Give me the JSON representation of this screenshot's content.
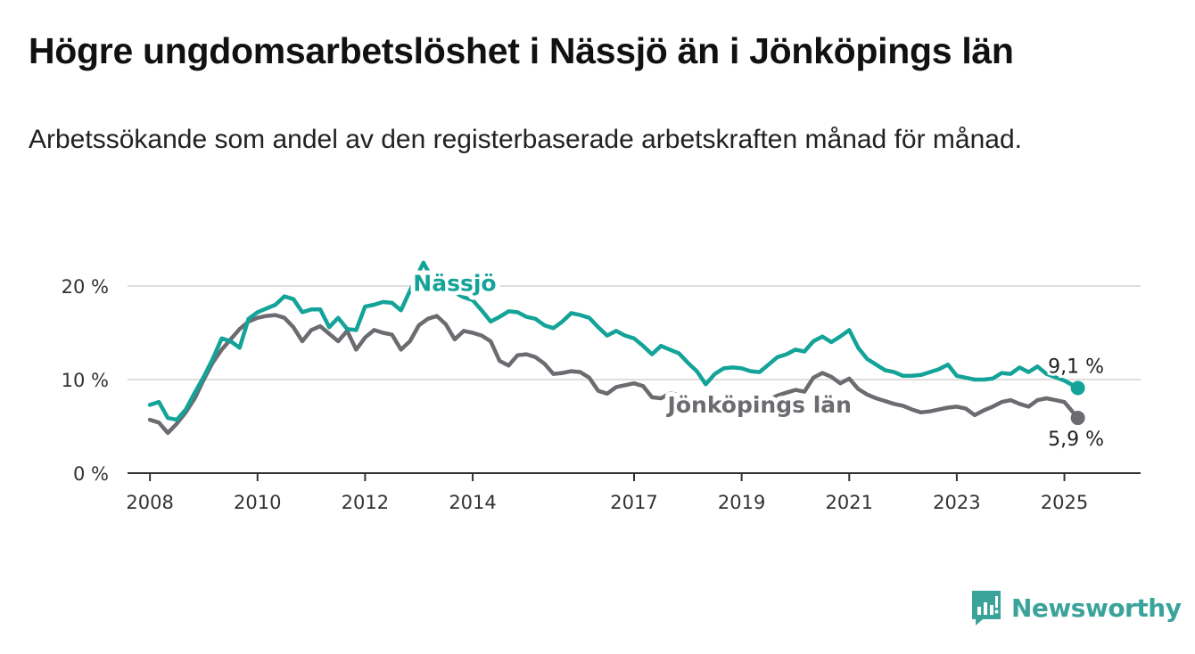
{
  "chart_data": {
    "type": "line",
    "title": "Högre ungdomsarbetslöshet i Nässjö än i Jönköpings län",
    "subtitle": "Arbetssökande som andel av den registerbaserade arbetskraften månad för månad.",
    "ylim": [
      0,
      22
    ],
    "yticks": [
      0,
      10,
      20
    ],
    "ytick_labels": [
      "0 %",
      "10 %",
      "20 %"
    ],
    "xlim": [
      "2007-08",
      "2026-06"
    ],
    "xticks": [
      {
        "x": "2008-01",
        "label": "2008"
      },
      {
        "x": "2010-01",
        "label": "2010"
      },
      {
        "x": "2012-01",
        "label": "2012"
      },
      {
        "x": "2014-01",
        "label": "2014"
      },
      {
        "x": "2017-01",
        "label": "2017"
      },
      {
        "x": "2019-01",
        "label": "2019"
      },
      {
        "x": "2021-01",
        "label": "2021"
      },
      {
        "x": "2023-01",
        "label": "2023"
      },
      {
        "x": "2025-01",
        "label": "2025"
      }
    ],
    "grid": true,
    "legend": "inline labels",
    "series": [
      {
        "name": "Nässjö",
        "color": "#13a398",
        "end_label": "9,1 %",
        "points": [
          [
            "2008-01",
            7.3
          ],
          [
            "2008-03",
            7.6
          ],
          [
            "2008-05",
            5.9
          ],
          [
            "2008-07",
            5.7
          ],
          [
            "2008-09",
            6.8
          ],
          [
            "2008-11",
            8.6
          ],
          [
            "2009-01",
            10.3
          ],
          [
            "2009-03",
            12.2
          ],
          [
            "2009-05",
            14.4
          ],
          [
            "2009-07",
            14.1
          ],
          [
            "2009-09",
            13.4
          ],
          [
            "2009-11",
            16.5
          ],
          [
            "2010-01",
            17.2
          ],
          [
            "2010-03",
            17.6
          ],
          [
            "2010-05",
            18.0
          ],
          [
            "2010-07",
            18.9
          ],
          [
            "2010-09",
            18.6
          ],
          [
            "2010-11",
            17.2
          ],
          [
            "2011-01",
            17.5
          ],
          [
            "2011-03",
            17.5
          ],
          [
            "2011-05",
            15.6
          ],
          [
            "2011-07",
            16.6
          ],
          [
            "2011-09",
            15.4
          ],
          [
            "2011-11",
            15.3
          ],
          [
            "2012-01",
            17.8
          ],
          [
            "2012-03",
            18.0
          ],
          [
            "2012-05",
            18.3
          ],
          [
            "2012-07",
            18.2
          ],
          [
            "2012-09",
            17.4
          ],
          [
            "2012-11",
            19.5
          ],
          [
            "2013-01",
            21.5
          ],
          [
            "2013-02",
            22.5
          ],
          [
            "2013-03",
            21.6
          ],
          [
            "2013-05",
            20.3
          ],
          [
            "2013-07",
            19.6
          ],
          [
            "2013-09",
            19.3
          ],
          [
            "2013-11",
            18.8
          ],
          [
            "2014-01",
            18.5
          ],
          [
            "2014-03",
            17.4
          ],
          [
            "2014-05",
            16.2
          ],
          [
            "2014-07",
            16.7
          ],
          [
            "2014-09",
            17.3
          ],
          [
            "2014-11",
            17.2
          ],
          [
            "2015-01",
            16.7
          ],
          [
            "2015-03",
            16.5
          ],
          [
            "2015-05",
            15.8
          ],
          [
            "2015-07",
            15.5
          ],
          [
            "2015-09",
            16.2
          ],
          [
            "2015-11",
            17.1
          ],
          [
            "2016-01",
            16.9
          ],
          [
            "2016-03",
            16.6
          ],
          [
            "2016-05",
            15.6
          ],
          [
            "2016-07",
            14.7
          ],
          [
            "2016-09",
            15.2
          ],
          [
            "2016-11",
            14.7
          ],
          [
            "2017-01",
            14.4
          ],
          [
            "2017-03",
            13.6
          ],
          [
            "2017-05",
            12.7
          ],
          [
            "2017-07",
            13.6
          ],
          [
            "2017-09",
            13.2
          ],
          [
            "2017-11",
            12.8
          ],
          [
            "2018-01",
            11.8
          ],
          [
            "2018-03",
            10.9
          ],
          [
            "2018-05",
            9.5
          ],
          [
            "2018-07",
            10.6
          ],
          [
            "2018-09",
            11.2
          ],
          [
            "2018-11",
            11.3
          ],
          [
            "2019-01",
            11.2
          ],
          [
            "2019-03",
            10.9
          ],
          [
            "2019-05",
            10.8
          ],
          [
            "2019-07",
            11.6
          ],
          [
            "2019-09",
            12.4
          ],
          [
            "2019-11",
            12.7
          ],
          [
            "2020-01",
            13.2
          ],
          [
            "2020-03",
            13.0
          ],
          [
            "2020-05",
            14.1
          ],
          [
            "2020-07",
            14.6
          ],
          [
            "2020-09",
            14.0
          ],
          [
            "2020-11",
            14.6
          ],
          [
            "2021-01",
            15.3
          ],
          [
            "2021-03",
            13.4
          ],
          [
            "2021-05",
            12.2
          ],
          [
            "2021-07",
            11.6
          ],
          [
            "2021-09",
            11.0
          ],
          [
            "2021-11",
            10.8
          ],
          [
            "2022-01",
            10.4
          ],
          [
            "2022-03",
            10.4
          ],
          [
            "2022-05",
            10.5
          ],
          [
            "2022-07",
            10.8
          ],
          [
            "2022-09",
            11.1
          ],
          [
            "2022-11",
            11.6
          ],
          [
            "2023-01",
            10.4
          ],
          [
            "2023-03",
            10.2
          ],
          [
            "2023-05",
            10.0
          ],
          [
            "2023-07",
            10.0
          ],
          [
            "2023-09",
            10.1
          ],
          [
            "2023-11",
            10.7
          ],
          [
            "2024-01",
            10.6
          ],
          [
            "2024-03",
            11.3
          ],
          [
            "2024-05",
            10.8
          ],
          [
            "2024-07",
            11.4
          ],
          [
            "2024-09",
            10.6
          ],
          [
            "2025-01",
            9.9
          ],
          [
            "2025-04",
            9.1
          ]
        ]
      },
      {
        "name": "Jönköpings län",
        "color": "#6b6b70",
        "end_label": "5,9 %",
        "points": [
          [
            "2008-01",
            5.7
          ],
          [
            "2008-03",
            5.4
          ],
          [
            "2008-05",
            4.3
          ],
          [
            "2008-07",
            5.3
          ],
          [
            "2008-09",
            6.5
          ],
          [
            "2008-11",
            8.0
          ],
          [
            "2009-01",
            10.0
          ],
          [
            "2009-03",
            11.8
          ],
          [
            "2009-05",
            13.2
          ],
          [
            "2009-07",
            14.3
          ],
          [
            "2009-09",
            15.4
          ],
          [
            "2009-11",
            16.2
          ],
          [
            "2010-01",
            16.6
          ],
          [
            "2010-03",
            16.8
          ],
          [
            "2010-05",
            16.9
          ],
          [
            "2010-07",
            16.6
          ],
          [
            "2010-09",
            15.6
          ],
          [
            "2010-11",
            14.1
          ],
          [
            "2011-01",
            15.3
          ],
          [
            "2011-03",
            15.7
          ],
          [
            "2011-05",
            14.9
          ],
          [
            "2011-07",
            14.1
          ],
          [
            "2011-09",
            15.2
          ],
          [
            "2011-11",
            13.2
          ],
          [
            "2012-01",
            14.5
          ],
          [
            "2012-03",
            15.3
          ],
          [
            "2012-05",
            15.0
          ],
          [
            "2012-07",
            14.8
          ],
          [
            "2012-09",
            13.2
          ],
          [
            "2012-11",
            14.1
          ],
          [
            "2013-01",
            15.8
          ],
          [
            "2013-03",
            16.5
          ],
          [
            "2013-05",
            16.8
          ],
          [
            "2013-07",
            15.9
          ],
          [
            "2013-09",
            14.3
          ],
          [
            "2013-11",
            15.2
          ],
          [
            "2014-01",
            15.0
          ],
          [
            "2014-03",
            14.7
          ],
          [
            "2014-05",
            14.1
          ],
          [
            "2014-07",
            12.0
          ],
          [
            "2014-09",
            11.5
          ],
          [
            "2014-11",
            12.6
          ],
          [
            "2015-01",
            12.7
          ],
          [
            "2015-03",
            12.4
          ],
          [
            "2015-05",
            11.7
          ],
          [
            "2015-07",
            10.6
          ],
          [
            "2015-09",
            10.7
          ],
          [
            "2015-11",
            10.9
          ],
          [
            "2016-01",
            10.8
          ],
          [
            "2016-03",
            10.2
          ],
          [
            "2016-05",
            8.8
          ],
          [
            "2016-07",
            8.5
          ],
          [
            "2016-09",
            9.2
          ],
          [
            "2016-11",
            9.4
          ],
          [
            "2017-01",
            9.6
          ],
          [
            "2017-03",
            9.3
          ],
          [
            "2017-05",
            8.1
          ],
          [
            "2017-07",
            8.0
          ],
          [
            "2017-09",
            8.5
          ],
          [
            "2017-11",
            8.4
          ],
          [
            "2018-01",
            7.9
          ],
          [
            "2018-03",
            7.2
          ],
          [
            "2018-05",
            6.8
          ],
          [
            "2018-07",
            7.2
          ],
          [
            "2018-09",
            7.3
          ],
          [
            "2018-11",
            7.6
          ],
          [
            "2019-01",
            7.8
          ],
          [
            "2019-03",
            7.6
          ],
          [
            "2019-05",
            7.3
          ],
          [
            "2019-07",
            7.8
          ],
          [
            "2019-09",
            8.3
          ],
          [
            "2019-11",
            8.6
          ],
          [
            "2020-01",
            8.9
          ],
          [
            "2020-03",
            8.7
          ],
          [
            "2020-05",
            10.2
          ],
          [
            "2020-07",
            10.7
          ],
          [
            "2020-09",
            10.3
          ],
          [
            "2020-11",
            9.6
          ],
          [
            "2021-01",
            10.1
          ],
          [
            "2021-03",
            9.0
          ],
          [
            "2021-05",
            8.4
          ],
          [
            "2021-07",
            8.0
          ],
          [
            "2021-09",
            7.7
          ],
          [
            "2021-11",
            7.4
          ],
          [
            "2022-01",
            7.2
          ],
          [
            "2022-03",
            6.8
          ],
          [
            "2022-05",
            6.5
          ],
          [
            "2022-07",
            6.6
          ],
          [
            "2022-09",
            6.8
          ],
          [
            "2022-11",
            7.0
          ],
          [
            "2023-01",
            7.1
          ],
          [
            "2023-03",
            6.9
          ],
          [
            "2023-05",
            6.2
          ],
          [
            "2023-07",
            6.7
          ],
          [
            "2023-09",
            7.1
          ],
          [
            "2023-11",
            7.6
          ],
          [
            "2024-01",
            7.8
          ],
          [
            "2024-03",
            7.4
          ],
          [
            "2024-05",
            7.1
          ],
          [
            "2024-07",
            7.8
          ],
          [
            "2024-09",
            8.0
          ],
          [
            "2024-11",
            7.8
          ],
          [
            "2025-01",
            7.6
          ],
          [
            "2025-04",
            5.9
          ]
        ]
      }
    ]
  },
  "brand": {
    "name": "Newsworthy",
    "icon": "chart-logo-icon",
    "color": "#3aa39a"
  }
}
